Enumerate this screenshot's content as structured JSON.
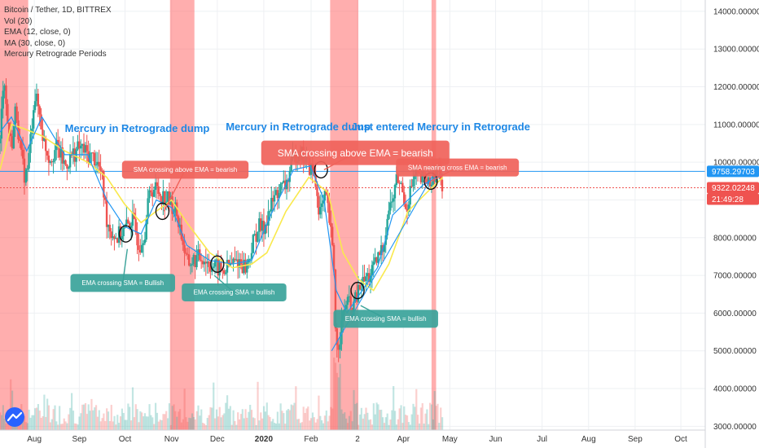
{
  "chart_data": {
    "type": "candlestick",
    "legend_lines": [
      "Bitcoin / Tether, 1D, BITTREX",
      "Vol (20)",
      "EMA (12, close, 0)",
      "MA (30, close, 0)",
      "Mercury Retrograde Periods"
    ],
    "price_axis": {
      "ylim": [
        2900,
        14300
      ],
      "ticks": [
        3000,
        4000,
        5000,
        6000,
        7000,
        8000,
        9000,
        10000,
        11000,
        12000,
        13000,
        14000
      ],
      "tick_labels": [
        "3000.00000",
        "4000.00000",
        "5000.00000",
        "6000.00000",
        "7000.00000",
        "8000.00000",
        "9000.00000",
        "10000.00000",
        "11000.00000",
        "12000.00000",
        "13000.00000",
        "14000.00000"
      ]
    },
    "time_axis": {
      "labels": [
        "Aug",
        "Sep",
        "Oct",
        "Nov",
        "Dec",
        "2020",
        "Feb",
        "2",
        "Apr",
        "May",
        "Jun",
        "Jul",
        "Aug",
        "Sep",
        "Oct"
      ],
      "label_days": [
        0,
        59,
        119,
        180,
        240,
        301,
        363,
        424,
        484,
        545,
        605,
        666,
        727,
        788,
        848
      ],
      "day_range": [
        -45,
        880
      ]
    },
    "price_markers": [
      {
        "value": 9758.29703,
        "label": "9758.29703",
        "color": "#2196f3"
      },
      {
        "value": 9322.02248,
        "label": "9322.02248",
        "color": "#ef5350"
      },
      {
        "label": "21:49:28",
        "color": "#ef5350"
      }
    ],
    "close_series": [
      {
        "day": -45,
        "v": 10500
      },
      {
        "day": -40,
        "v": 12500
      },
      {
        "day": -36,
        "v": 11200
      },
      {
        "day": -30,
        "v": 10400
      },
      {
        "day": -24,
        "v": 11500
      },
      {
        "day": -18,
        "v": 10200
      },
      {
        "day": -12,
        "v": 9600
      },
      {
        "day": -8,
        "v": 9900
      },
      {
        "day": 0,
        "v": 11800
      },
      {
        "day": 6,
        "v": 11400
      },
      {
        "day": 12,
        "v": 10600
      },
      {
        "day": 20,
        "v": 10100
      },
      {
        "day": 30,
        "v": 10400
      },
      {
        "day": 40,
        "v": 9900
      },
      {
        "day": 50,
        "v": 10200
      },
      {
        "day": 60,
        "v": 10400
      },
      {
        "day": 70,
        "v": 10200
      },
      {
        "day": 80,
        "v": 10100
      },
      {
        "day": 88,
        "v": 9700
      },
      {
        "day": 95,
        "v": 8500
      },
      {
        "day": 100,
        "v": 8200
      },
      {
        "day": 108,
        "v": 8000
      },
      {
        "day": 118,
        "v": 8200
      },
      {
        "day": 128,
        "v": 8500
      },
      {
        "day": 138,
        "v": 7800
      },
      {
        "day": 145,
        "v": 8200
      },
      {
        "day": 152,
        "v": 9300
      },
      {
        "day": 160,
        "v": 9300
      },
      {
        "day": 168,
        "v": 9100
      },
      {
        "day": 176,
        "v": 9000
      },
      {
        "day": 186,
        "v": 8700
      },
      {
        "day": 194,
        "v": 8000
      },
      {
        "day": 200,
        "v": 7300
      },
      {
        "day": 210,
        "v": 7400
      },
      {
        "day": 220,
        "v": 7500
      },
      {
        "day": 230,
        "v": 7300
      },
      {
        "day": 238,
        "v": 7200
      },
      {
        "day": 248,
        "v": 7100
      },
      {
        "day": 258,
        "v": 7300
      },
      {
        "day": 268,
        "v": 7400
      },
      {
        "day": 278,
        "v": 7200
      },
      {
        "day": 286,
        "v": 7800
      },
      {
        "day": 294,
        "v": 8300
      },
      {
        "day": 300,
        "v": 8200
      },
      {
        "day": 306,
        "v": 8600
      },
      {
        "day": 312,
        "v": 8900
      },
      {
        "day": 318,
        "v": 9200
      },
      {
        "day": 324,
        "v": 9300
      },
      {
        "day": 330,
        "v": 9400
      },
      {
        "day": 336,
        "v": 9800
      },
      {
        "day": 342,
        "v": 10200
      },
      {
        "day": 348,
        "v": 10300
      },
      {
        "day": 354,
        "v": 10100
      },
      {
        "day": 360,
        "v": 9900
      },
      {
        "day": 366,
        "v": 9700
      },
      {
        "day": 370,
        "v": 9300
      },
      {
        "day": 374,
        "v": 8700
      },
      {
        "day": 378,
        "v": 8800
      },
      {
        "day": 382,
        "v": 9100
      },
      {
        "day": 386,
        "v": 8600
      },
      {
        "day": 390,
        "v": 7900
      },
      {
        "day": 393,
        "v": 7200
      },
      {
        "day": 396,
        "v": 5000
      },
      {
        "day": 400,
        "v": 5300
      },
      {
        "day": 404,
        "v": 5800
      },
      {
        "day": 410,
        "v": 6400
      },
      {
        "day": 416,
        "v": 6000
      },
      {
        "day": 422,
        "v": 6400
      },
      {
        "day": 428,
        "v": 6700
      },
      {
        "day": 434,
        "v": 6900
      },
      {
        "day": 440,
        "v": 7000
      },
      {
        "day": 446,
        "v": 7200
      },
      {
        "day": 452,
        "v": 7500
      },
      {
        "day": 458,
        "v": 7800
      },
      {
        "day": 464,
        "v": 8700
      },
      {
        "day": 470,
        "v": 9000
      },
      {
        "day": 476,
        "v": 9600
      },
      {
        "day": 482,
        "v": 9300
      },
      {
        "day": 488,
        "v": 8800
      },
      {
        "day": 494,
        "v": 9300
      },
      {
        "day": 500,
        "v": 9700
      },
      {
        "day": 506,
        "v": 9500
      },
      {
        "day": 512,
        "v": 9600
      },
      {
        "day": 518,
        "v": 9450
      },
      {
        "day": 524,
        "v": 9700
      },
      {
        "day": 530,
        "v": 9850
      },
      {
        "day": 536,
        "v": 9400
      }
    ],
    "ema_12": [
      {
        "day": -45,
        "v": 10800
      },
      {
        "day": -30,
        "v": 11200
      },
      {
        "day": -10,
        "v": 10300
      },
      {
        "day": 10,
        "v": 11200
      },
      {
        "day": 40,
        "v": 10200
      },
      {
        "day": 70,
        "v": 10200
      },
      {
        "day": 95,
        "v": 9000
      },
      {
        "day": 118,
        "v": 8300
      },
      {
        "day": 140,
        "v": 8100
      },
      {
        "day": 160,
        "v": 9000
      },
      {
        "day": 180,
        "v": 8800
      },
      {
        "day": 200,
        "v": 7800
      },
      {
        "day": 230,
        "v": 7400
      },
      {
        "day": 260,
        "v": 7300
      },
      {
        "day": 285,
        "v": 7400
      },
      {
        "day": 310,
        "v": 8600
      },
      {
        "day": 340,
        "v": 9800
      },
      {
        "day": 362,
        "v": 9900
      },
      {
        "day": 380,
        "v": 9000
      },
      {
        "day": 396,
        "v": 6600
      },
      {
        "day": 410,
        "v": 6000
      },
      {
        "day": 430,
        "v": 6600
      },
      {
        "day": 450,
        "v": 7200
      },
      {
        "day": 470,
        "v": 8600
      },
      {
        "day": 490,
        "v": 9000
      },
      {
        "day": 510,
        "v": 9400
      },
      {
        "day": 536,
        "v": 9700
      }
    ],
    "ma_30": [
      {
        "day": -45,
        "v": 9800
      },
      {
        "day": -30,
        "v": 11000
      },
      {
        "day": -15,
        "v": 10900
      },
      {
        "day": 10,
        "v": 10700
      },
      {
        "day": 40,
        "v": 10300
      },
      {
        "day": 70,
        "v": 10000
      },
      {
        "day": 95,
        "v": 9600
      },
      {
        "day": 118,
        "v": 8900
      },
      {
        "day": 140,
        "v": 8400
      },
      {
        "day": 160,
        "v": 8700
      },
      {
        "day": 180,
        "v": 9000
      },
      {
        "day": 200,
        "v": 8400
      },
      {
        "day": 230,
        "v": 7600
      },
      {
        "day": 260,
        "v": 7200
      },
      {
        "day": 285,
        "v": 7300
      },
      {
        "day": 305,
        "v": 7600
      },
      {
        "day": 330,
        "v": 8700
      },
      {
        "day": 360,
        "v": 9600
      },
      {
        "day": 385,
        "v": 9200
      },
      {
        "day": 405,
        "v": 7600
      },
      {
        "day": 425,
        "v": 6900
      },
      {
        "day": 445,
        "v": 6600
      },
      {
        "day": 465,
        "v": 7300
      },
      {
        "day": 490,
        "v": 8700
      },
      {
        "day": 515,
        "v": 9200
      },
      {
        "day": 536,
        "v": 9600
      }
    ],
    "retrograde_periods": [
      [
        -45,
        -8
      ],
      [
        178,
        210
      ],
      [
        388,
        425
      ],
      [
        521,
        527
      ]
    ],
    "trendline": [
      {
        "day": 390,
        "v": 5000
      },
      {
        "day": 524,
        "v": 9700
      }
    ],
    "circles": [
      {
        "day": 120,
        "v": 8100
      },
      {
        "day": 168,
        "v": 8700
      },
      {
        "day": 240,
        "v": 7300
      },
      {
        "day": 376,
        "v": 9800
      },
      {
        "day": 424,
        "v": 6600
      },
      {
        "day": 520,
        "v": 9500
      }
    ],
    "annotations": [
      {
        "text": "Mercury in Retrograde dump",
        "day": 135,
        "v": 10800,
        "style": "title"
      },
      {
        "text": "Mercury in Retrograde dump",
        "day": 346,
        "v": 10850,
        "style": "title"
      },
      {
        "text": "Just entered Mercury in Retrograde",
        "day": 533,
        "v": 10850,
        "style": "title"
      },
      {
        "text": "SMA crossing above EMA = bearish",
        "day": 198,
        "v": 9800,
        "style": "red-small",
        "pointer": {
          "day": 170,
          "v": 8700
        }
      },
      {
        "text": "SMA crossing above EMA = bearish",
        "day": 421,
        "v": 10250,
        "style": "red-large",
        "pointer": {
          "day": 380,
          "v": 9800
        }
      },
      {
        "text": "SMA nearing cross EMA = bearish",
        "day": 555,
        "v": 9860,
        "style": "red-small",
        "pointer": {
          "day": 520,
          "v": 9500
        }
      },
      {
        "text": "EMA crossing SMA = Bullish",
        "day": 116,
        "v": 6800,
        "style": "teal",
        "pointer": {
          "day": 122,
          "v": 7700
        }
      },
      {
        "text": "EMA crossing SMA = bullish",
        "day": 262,
        "v": 6550,
        "style": "teal",
        "pointer": {
          "day": 236,
          "v": 7000
        }
      },
      {
        "text": "EMA crossing SMA = bullish",
        "day": 461,
        "v": 5850,
        "style": "teal",
        "pointer": {
          "day": 428,
          "v": 6200
        }
      }
    ],
    "colors": {
      "up": "#26a69a",
      "down": "#ef5350",
      "ema": "#2196f3",
      "ma": "#f9e94d",
      "retrograde": "#ff6b6b",
      "title_text": "#1e88e5",
      "red_box": "#f0625a",
      "teal_box": "#3aa39a"
    },
    "grid": true
  }
}
